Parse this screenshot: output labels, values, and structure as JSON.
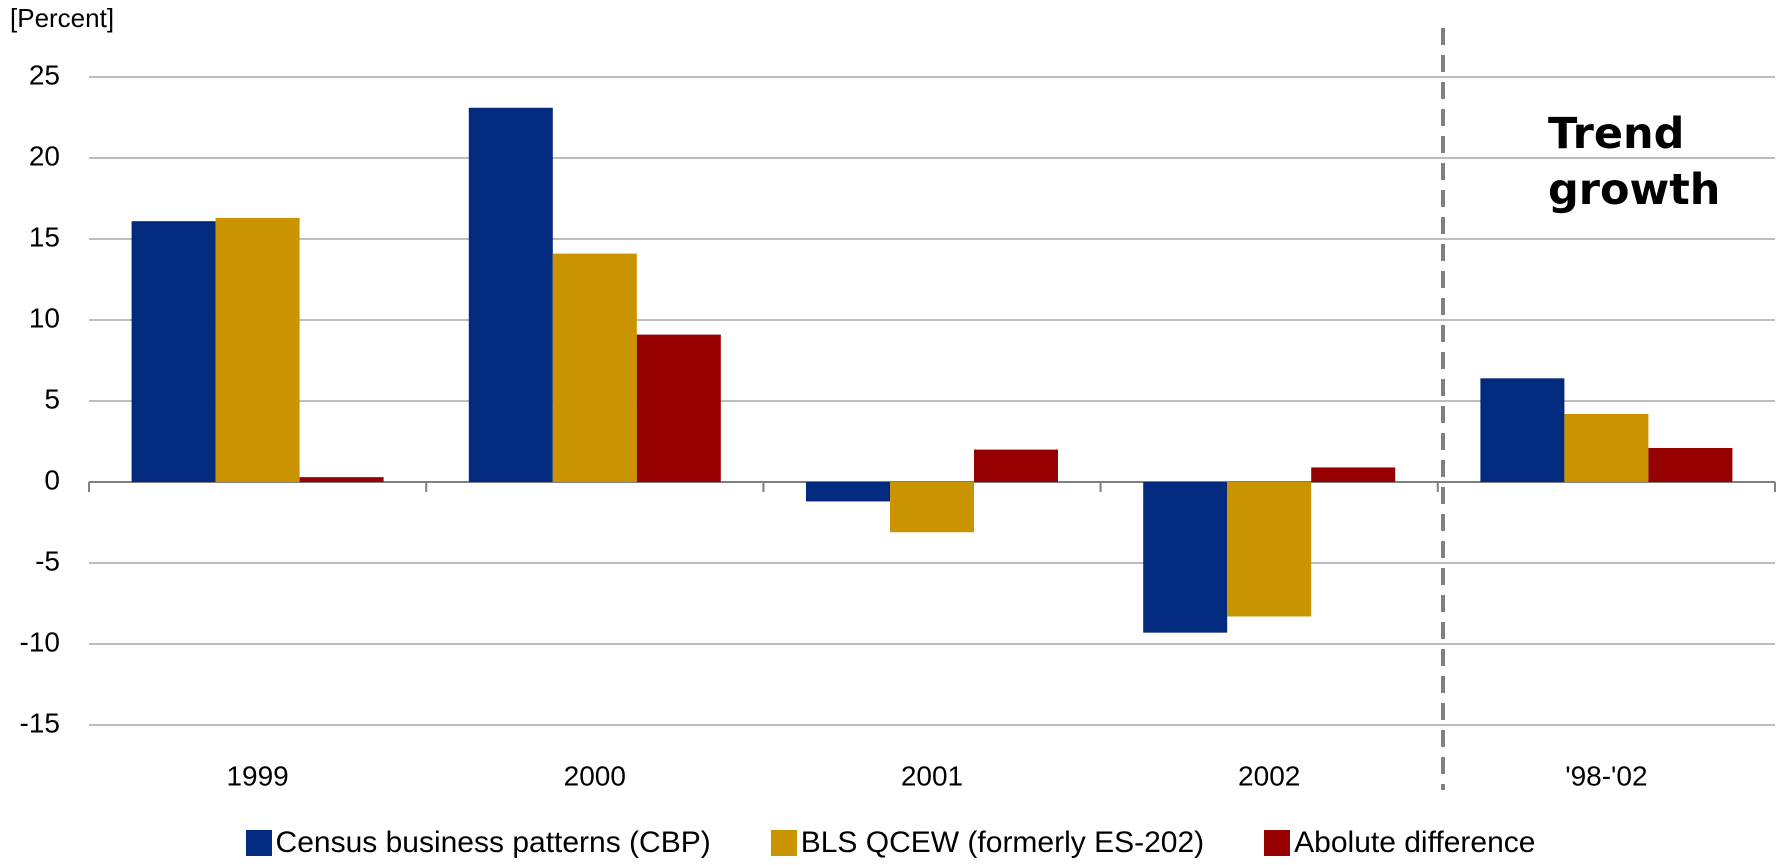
{
  "chart_data": {
    "type": "bar",
    "y_axis_label": "[Percent]",
    "annotation": "Trend growth",
    "categories": [
      "1999",
      "2000",
      "2001",
      "2002",
      "'98-'02"
    ],
    "series": [
      {
        "name": "Census business patterns (CBP)",
        "color": "#022a7e",
        "values": [
          16.1,
          23.1,
          -1.2,
          -9.3,
          6.4
        ]
      },
      {
        "name": "BLS QCEW (formerly ES-202)",
        "color": "#c99400",
        "values": [
          16.3,
          14.1,
          -3.1,
          -8.3,
          4.2
        ]
      },
      {
        "name": "Abolute difference",
        "color": "#970000",
        "values": [
          0.3,
          9.1,
          2.0,
          0.9,
          2.1
        ]
      }
    ],
    "ylim": [
      -15,
      25
    ],
    "yticks": [
      -15,
      -10,
      -5,
      0,
      5,
      10,
      15,
      20,
      25
    ],
    "grid": true,
    "legend": "bottom"
  }
}
